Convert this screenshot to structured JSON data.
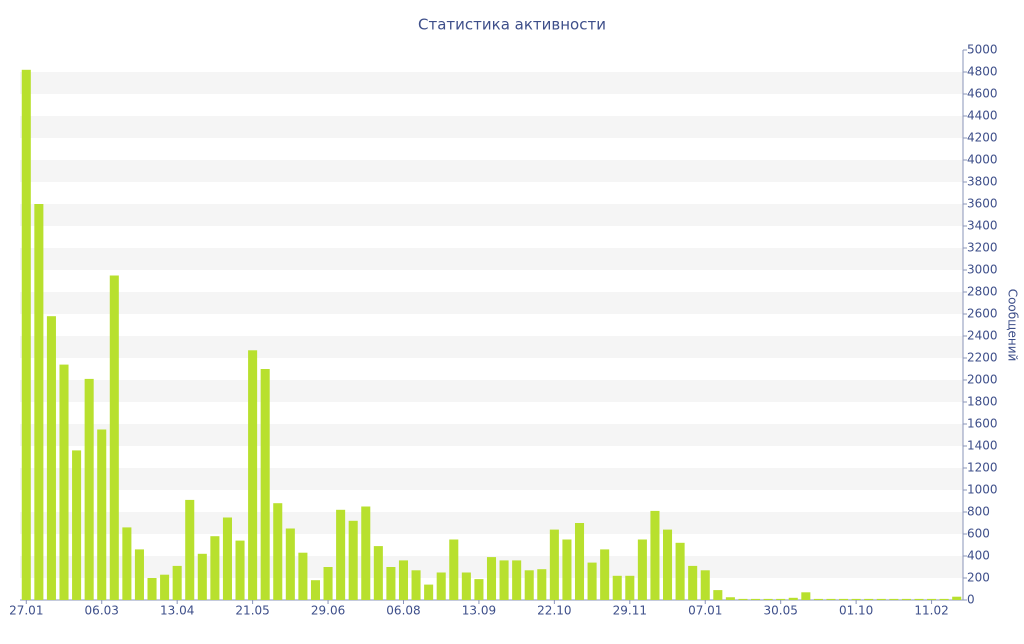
{
  "chart_data": {
    "type": "bar",
    "title": "Статистика активности",
    "y_axis_label": "Сообщений",
    "categories": [
      "27.01",
      null,
      null,
      null,
      null,
      null,
      "06.03",
      null,
      null,
      null,
      null,
      null,
      "13.04",
      null,
      null,
      null,
      null,
      null,
      "21.05",
      null,
      null,
      null,
      null,
      null,
      "29.06",
      null,
      null,
      null,
      null,
      null,
      "06.08",
      null,
      null,
      null,
      null,
      null,
      "13.09",
      null,
      null,
      null,
      null,
      null,
      "22.10",
      null,
      null,
      null,
      null,
      null,
      "29.11",
      null,
      null,
      null,
      null,
      null,
      "07.01",
      null,
      null,
      null,
      null,
      null,
      "30.05",
      null,
      null,
      null,
      null,
      null,
      "01.10",
      null,
      null,
      null,
      null,
      null,
      "11.02",
      null,
      null
    ],
    "values": [
      4820,
      3600,
      2580,
      2140,
      1360,
      2010,
      1550,
      2950,
      660,
      460,
      200,
      230,
      310,
      910,
      420,
      580,
      750,
      540,
      2270,
      2100,
      880,
      650,
      430,
      180,
      300,
      820,
      720,
      850,
      490,
      300,
      360,
      270,
      140,
      250,
      550,
      250,
      190,
      390,
      360,
      360,
      270,
      280,
      640,
      550,
      700,
      340,
      460,
      220,
      220,
      550,
      810,
      640,
      520,
      310,
      270,
      90,
      25,
      10,
      10,
      10,
      10,
      20,
      70,
      10,
      10,
      10,
      10,
      10,
      10,
      10,
      10,
      10,
      10,
      10,
      30
    ],
    "color": "#b8e02e",
    "ylim": [
      0,
      5000
    ],
    "yticks": [
      0,
      200,
      400,
      600,
      800,
      1000,
      1200,
      1400,
      1600,
      1800,
      2000,
      2200,
      2400,
      2600,
      2800,
      3000,
      3200,
      3400,
      3600,
      3800,
      4000,
      4200,
      4400,
      4600,
      4800,
      5000
    ],
    "grid": "bands",
    "y_axis_side": "right"
  }
}
